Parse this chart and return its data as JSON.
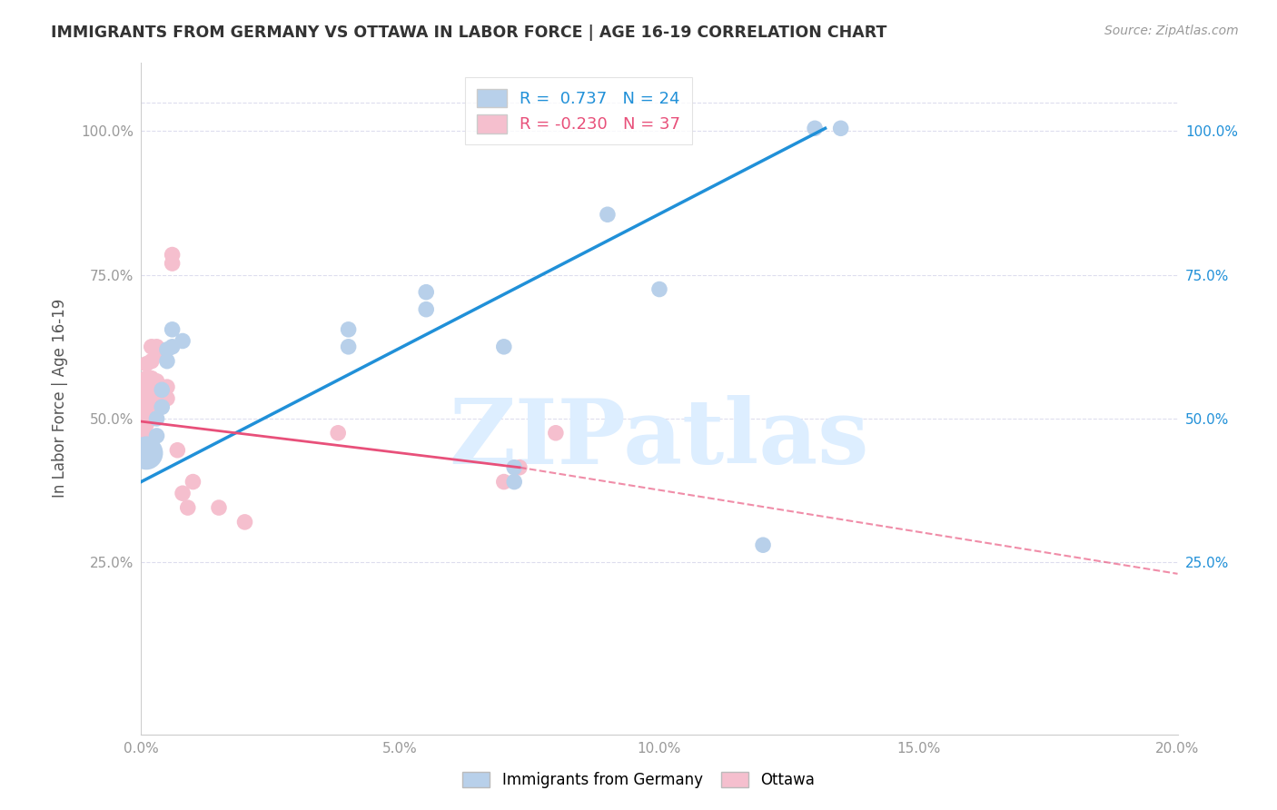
{
  "title": "IMMIGRANTS FROM GERMANY VS OTTAWA IN LABOR FORCE | AGE 16-19 CORRELATION CHART",
  "source": "Source: ZipAtlas.com",
  "ylabel": "In Labor Force | Age 16-19",
  "xlim": [
    0.0,
    0.2
  ],
  "ylim": [
    -0.05,
    1.12
  ],
  "xtick_vals": [
    0.0,
    0.05,
    0.1,
    0.15,
    0.2
  ],
  "xtick_labels": [
    "0.0%",
    "5.0%",
    "10.0%",
    "15.0%",
    "20.0%"
  ],
  "ytick_vals": [
    0.25,
    0.5,
    0.75,
    1.0
  ],
  "ytick_labels": [
    "25.0%",
    "50.0%",
    "75.0%",
    "100.0%"
  ],
  "germany_R": "0.737",
  "germany_N": "24",
  "ottawa_R": "-0.230",
  "ottawa_N": "37",
  "germany_color": "#b8d0ea",
  "ottawa_color": "#f5bfce",
  "germany_line_color": "#2090d8",
  "ottawa_line_color": "#e8507a",
  "watermark_text": "ZIPatlas",
  "watermark_color": "#ddeeff",
  "background_color": "#ffffff",
  "grid_color": "#ddddee",
  "germany_line_x0": 0.0,
  "germany_line_y0": 0.39,
  "germany_line_x1": 0.132,
  "germany_line_y1": 1.005,
  "ottawa_line_solid_x0": 0.0,
  "ottawa_line_solid_y0": 0.495,
  "ottawa_line_solid_x1": 0.073,
  "ottawa_line_solid_y1": 0.415,
  "ottawa_line_dash_x1": 0.2,
  "ottawa_line_dash_y1": 0.23,
  "germany_points": [
    [
      0.001,
      0.43
    ],
    [
      0.001,
      0.455
    ],
    [
      0.002,
      0.455
    ],
    [
      0.003,
      0.47
    ],
    [
      0.003,
      0.5
    ],
    [
      0.004,
      0.52
    ],
    [
      0.004,
      0.55
    ],
    [
      0.005,
      0.6
    ],
    [
      0.005,
      0.62
    ],
    [
      0.006,
      0.625
    ],
    [
      0.006,
      0.655
    ],
    [
      0.008,
      0.635
    ],
    [
      0.04,
      0.625
    ],
    [
      0.04,
      0.655
    ],
    [
      0.055,
      0.69
    ],
    [
      0.055,
      0.72
    ],
    [
      0.07,
      0.625
    ],
    [
      0.072,
      0.415
    ],
    [
      0.072,
      0.39
    ],
    [
      0.09,
      0.855
    ],
    [
      0.1,
      0.725
    ],
    [
      0.12,
      0.28
    ],
    [
      0.13,
      1.005
    ],
    [
      0.135,
      1.005
    ]
  ],
  "germany_large_size": 700,
  "germany_large_point": [
    0.001,
    0.44
  ],
  "ottawa_points": [
    [
      0.001,
      0.435
    ],
    [
      0.001,
      0.47
    ],
    [
      0.001,
      0.49
    ],
    [
      0.001,
      0.505
    ],
    [
      0.001,
      0.515
    ],
    [
      0.001,
      0.525
    ],
    [
      0.001,
      0.535
    ],
    [
      0.001,
      0.545
    ],
    [
      0.001,
      0.555
    ],
    [
      0.001,
      0.57
    ],
    [
      0.001,
      0.595
    ],
    [
      0.002,
      0.525
    ],
    [
      0.002,
      0.545
    ],
    [
      0.002,
      0.555
    ],
    [
      0.002,
      0.57
    ],
    [
      0.002,
      0.6
    ],
    [
      0.002,
      0.625
    ],
    [
      0.003,
      0.545
    ],
    [
      0.003,
      0.565
    ],
    [
      0.003,
      0.615
    ],
    [
      0.003,
      0.625
    ],
    [
      0.004,
      0.535
    ],
    [
      0.004,
      0.555
    ],
    [
      0.005,
      0.535
    ],
    [
      0.005,
      0.555
    ],
    [
      0.006,
      0.77
    ],
    [
      0.006,
      0.785
    ],
    [
      0.007,
      0.445
    ],
    [
      0.008,
      0.37
    ],
    [
      0.009,
      0.345
    ],
    [
      0.01,
      0.39
    ],
    [
      0.015,
      0.345
    ],
    [
      0.02,
      0.32
    ],
    [
      0.038,
      0.475
    ],
    [
      0.07,
      0.39
    ],
    [
      0.073,
      0.415
    ],
    [
      0.08,
      0.475
    ]
  ],
  "bottom_legend_germany": "Immigrants from Germany",
  "bottom_legend_ottawa": "Ottawa"
}
